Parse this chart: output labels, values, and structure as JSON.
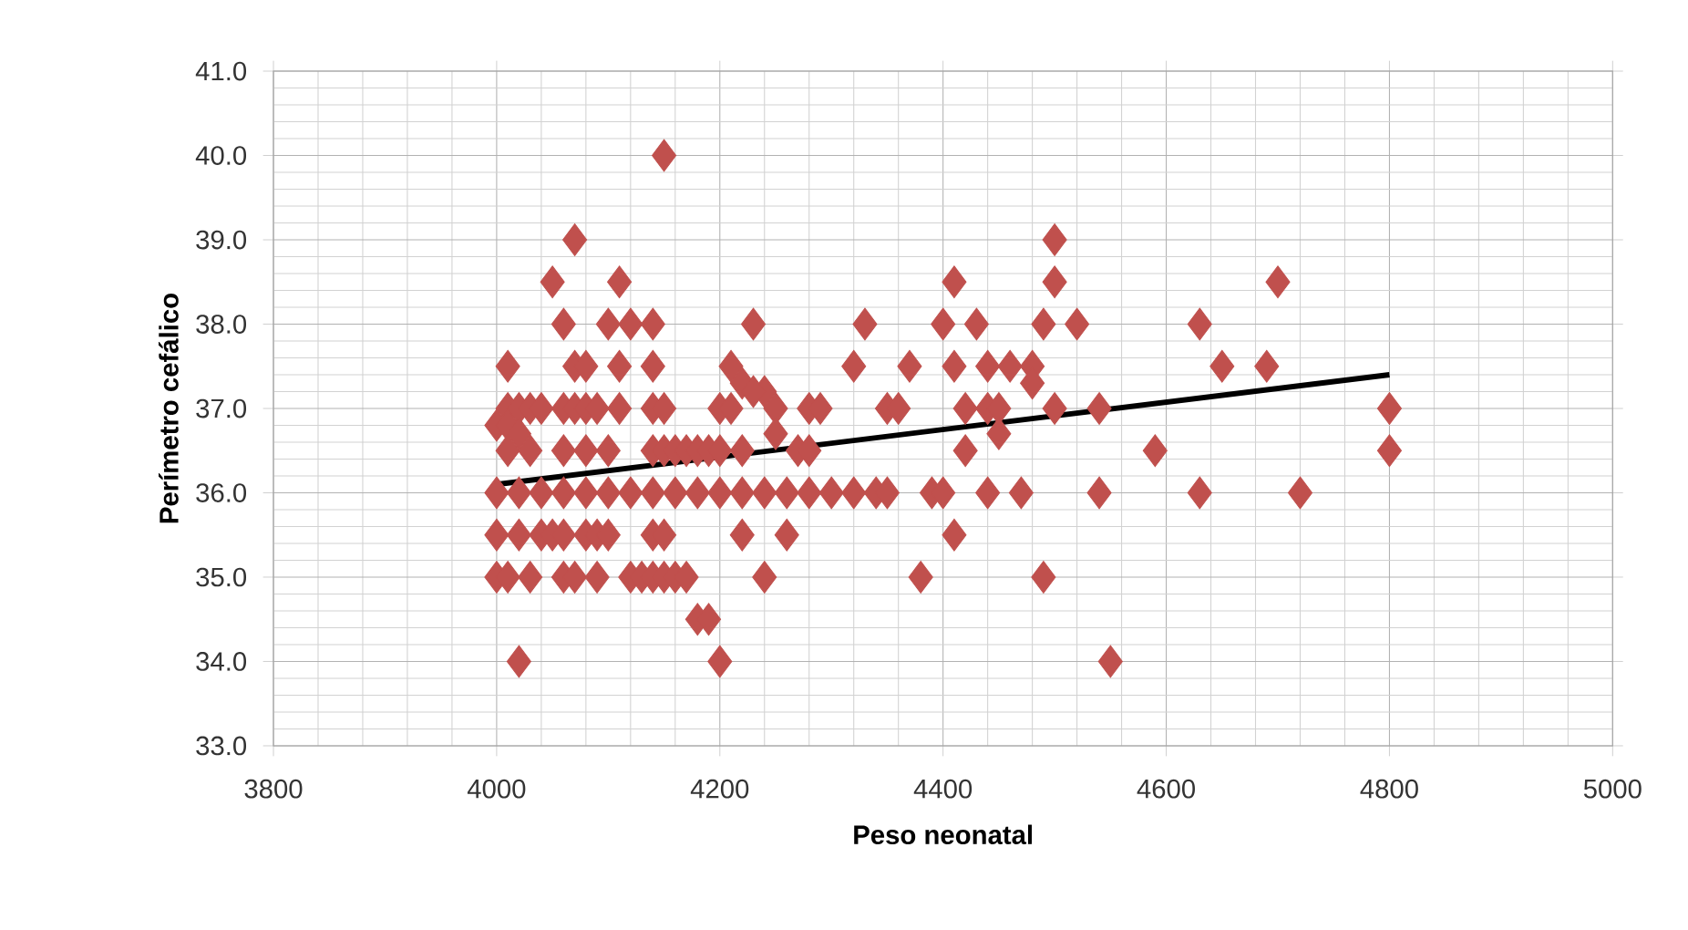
{
  "chart_data": {
    "type": "scatter",
    "xlabel": "Peso neonatal",
    "ylabel": "Perímetro cefálico",
    "xlim": [
      3800,
      5000
    ],
    "ylim": [
      33,
      41
    ],
    "xticks": [
      3800,
      4000,
      4200,
      4400,
      4600,
      4800,
      5000
    ],
    "yticks": [
      {
        "value": 33,
        "label": "33.0"
      },
      {
        "value": 34,
        "label": "34.0"
      },
      {
        "value": 35,
        "label": "35.0"
      },
      {
        "value": 36,
        "label": "36.0"
      },
      {
        "value": 37,
        "label": "37.0"
      },
      {
        "value": 38,
        "label": "38.0"
      },
      {
        "value": 39,
        "label": "39.0"
      },
      {
        "value": 40,
        "label": "40.0"
      },
      {
        "value": 41,
        "label": "41.0"
      }
    ],
    "grid": true,
    "series": [
      {
        "type": "scatter",
        "marker": "diamond",
        "color": "#c0504d",
        "x": [
          4150,
          4070,
          4500,
          4050,
          4110,
          4410,
          4500,
          4700,
          4060,
          4100,
          4120,
          4140,
          4230,
          4330,
          4400,
          4430,
          4490,
          4520,
          4630,
          4010,
          4070,
          4080,
          4110,
          4140,
          4210,
          4320,
          4370,
          4410,
          4440,
          4460,
          4480,
          4650,
          4690,
          4220,
          4480,
          4240,
          4230,
          4010,
          4020,
          4030,
          4040,
          4060,
          4070,
          4080,
          4090,
          4110,
          4140,
          4150,
          4200,
          4210,
          4250,
          4280,
          4290,
          4350,
          4360,
          4420,
          4440,
          4450,
          4500,
          4540,
          4800,
          4000,
          4010,
          4020,
          4250,
          4450,
          4010,
          4030,
          4060,
          4080,
          4100,
          4140,
          4150,
          4160,
          4170,
          4180,
          4190,
          4200,
          4220,
          4270,
          4280,
          4420,
          4590,
          4800,
          4000,
          4020,
          4040,
          4060,
          4080,
          4100,
          4120,
          4140,
          4160,
          4180,
          4200,
          4220,
          4240,
          4260,
          4280,
          4300,
          4320,
          4340,
          4350,
          4390,
          4400,
          4440,
          4470,
          4540,
          4630,
          4720,
          4000,
          4020,
          4040,
          4050,
          4060,
          4080,
          4090,
          4100,
          4140,
          4150,
          4220,
          4260,
          4410,
          4000,
          4010,
          4030,
          4060,
          4070,
          4090,
          4120,
          4130,
          4140,
          4150,
          4160,
          4170,
          4240,
          4380,
          4490,
          4180,
          4190,
          4020,
          4200,
          4550
        ],
        "values": [
          40,
          39,
          39,
          38.5,
          38.5,
          38.5,
          38.5,
          38.5,
          38,
          38,
          38,
          38,
          38,
          38,
          38,
          38,
          38,
          38,
          38,
          37.5,
          37.5,
          37.5,
          37.5,
          37.5,
          37.5,
          37.5,
          37.5,
          37.5,
          37.5,
          37.5,
          37.5,
          37.5,
          37.5,
          37.3,
          37.3,
          37.2,
          37.2,
          37,
          37,
          37,
          37,
          37,
          37,
          37,
          37,
          37,
          37,
          37,
          37,
          37,
          37,
          37,
          37,
          37,
          37,
          37,
          37,
          37,
          37,
          37,
          37,
          36.8,
          36.8,
          36.7,
          36.7,
          36.7,
          36.5,
          36.5,
          36.5,
          36.5,
          36.5,
          36.5,
          36.5,
          36.5,
          36.5,
          36.5,
          36.5,
          36.5,
          36.5,
          36.5,
          36.5,
          36.5,
          36.5,
          36.5,
          36,
          36,
          36,
          36,
          36,
          36,
          36,
          36,
          36,
          36,
          36,
          36,
          36,
          36,
          36,
          36,
          36,
          36,
          36,
          36,
          36,
          36,
          36,
          36,
          36,
          36,
          35.5,
          35.5,
          35.5,
          35.5,
          35.5,
          35.5,
          35.5,
          35.5,
          35.5,
          35.5,
          35.5,
          35.5,
          35.5,
          35,
          35,
          35,
          35,
          35,
          35,
          35,
          35,
          35,
          35,
          35,
          35,
          35,
          35,
          35,
          34.5,
          34.5,
          34,
          34,
          34
        ]
      },
      {
        "type": "line",
        "marker": "none",
        "color": "#000000",
        "x": [
          4000,
          4800
        ],
        "values": [
          36.1,
          37.4
        ]
      }
    ]
  }
}
